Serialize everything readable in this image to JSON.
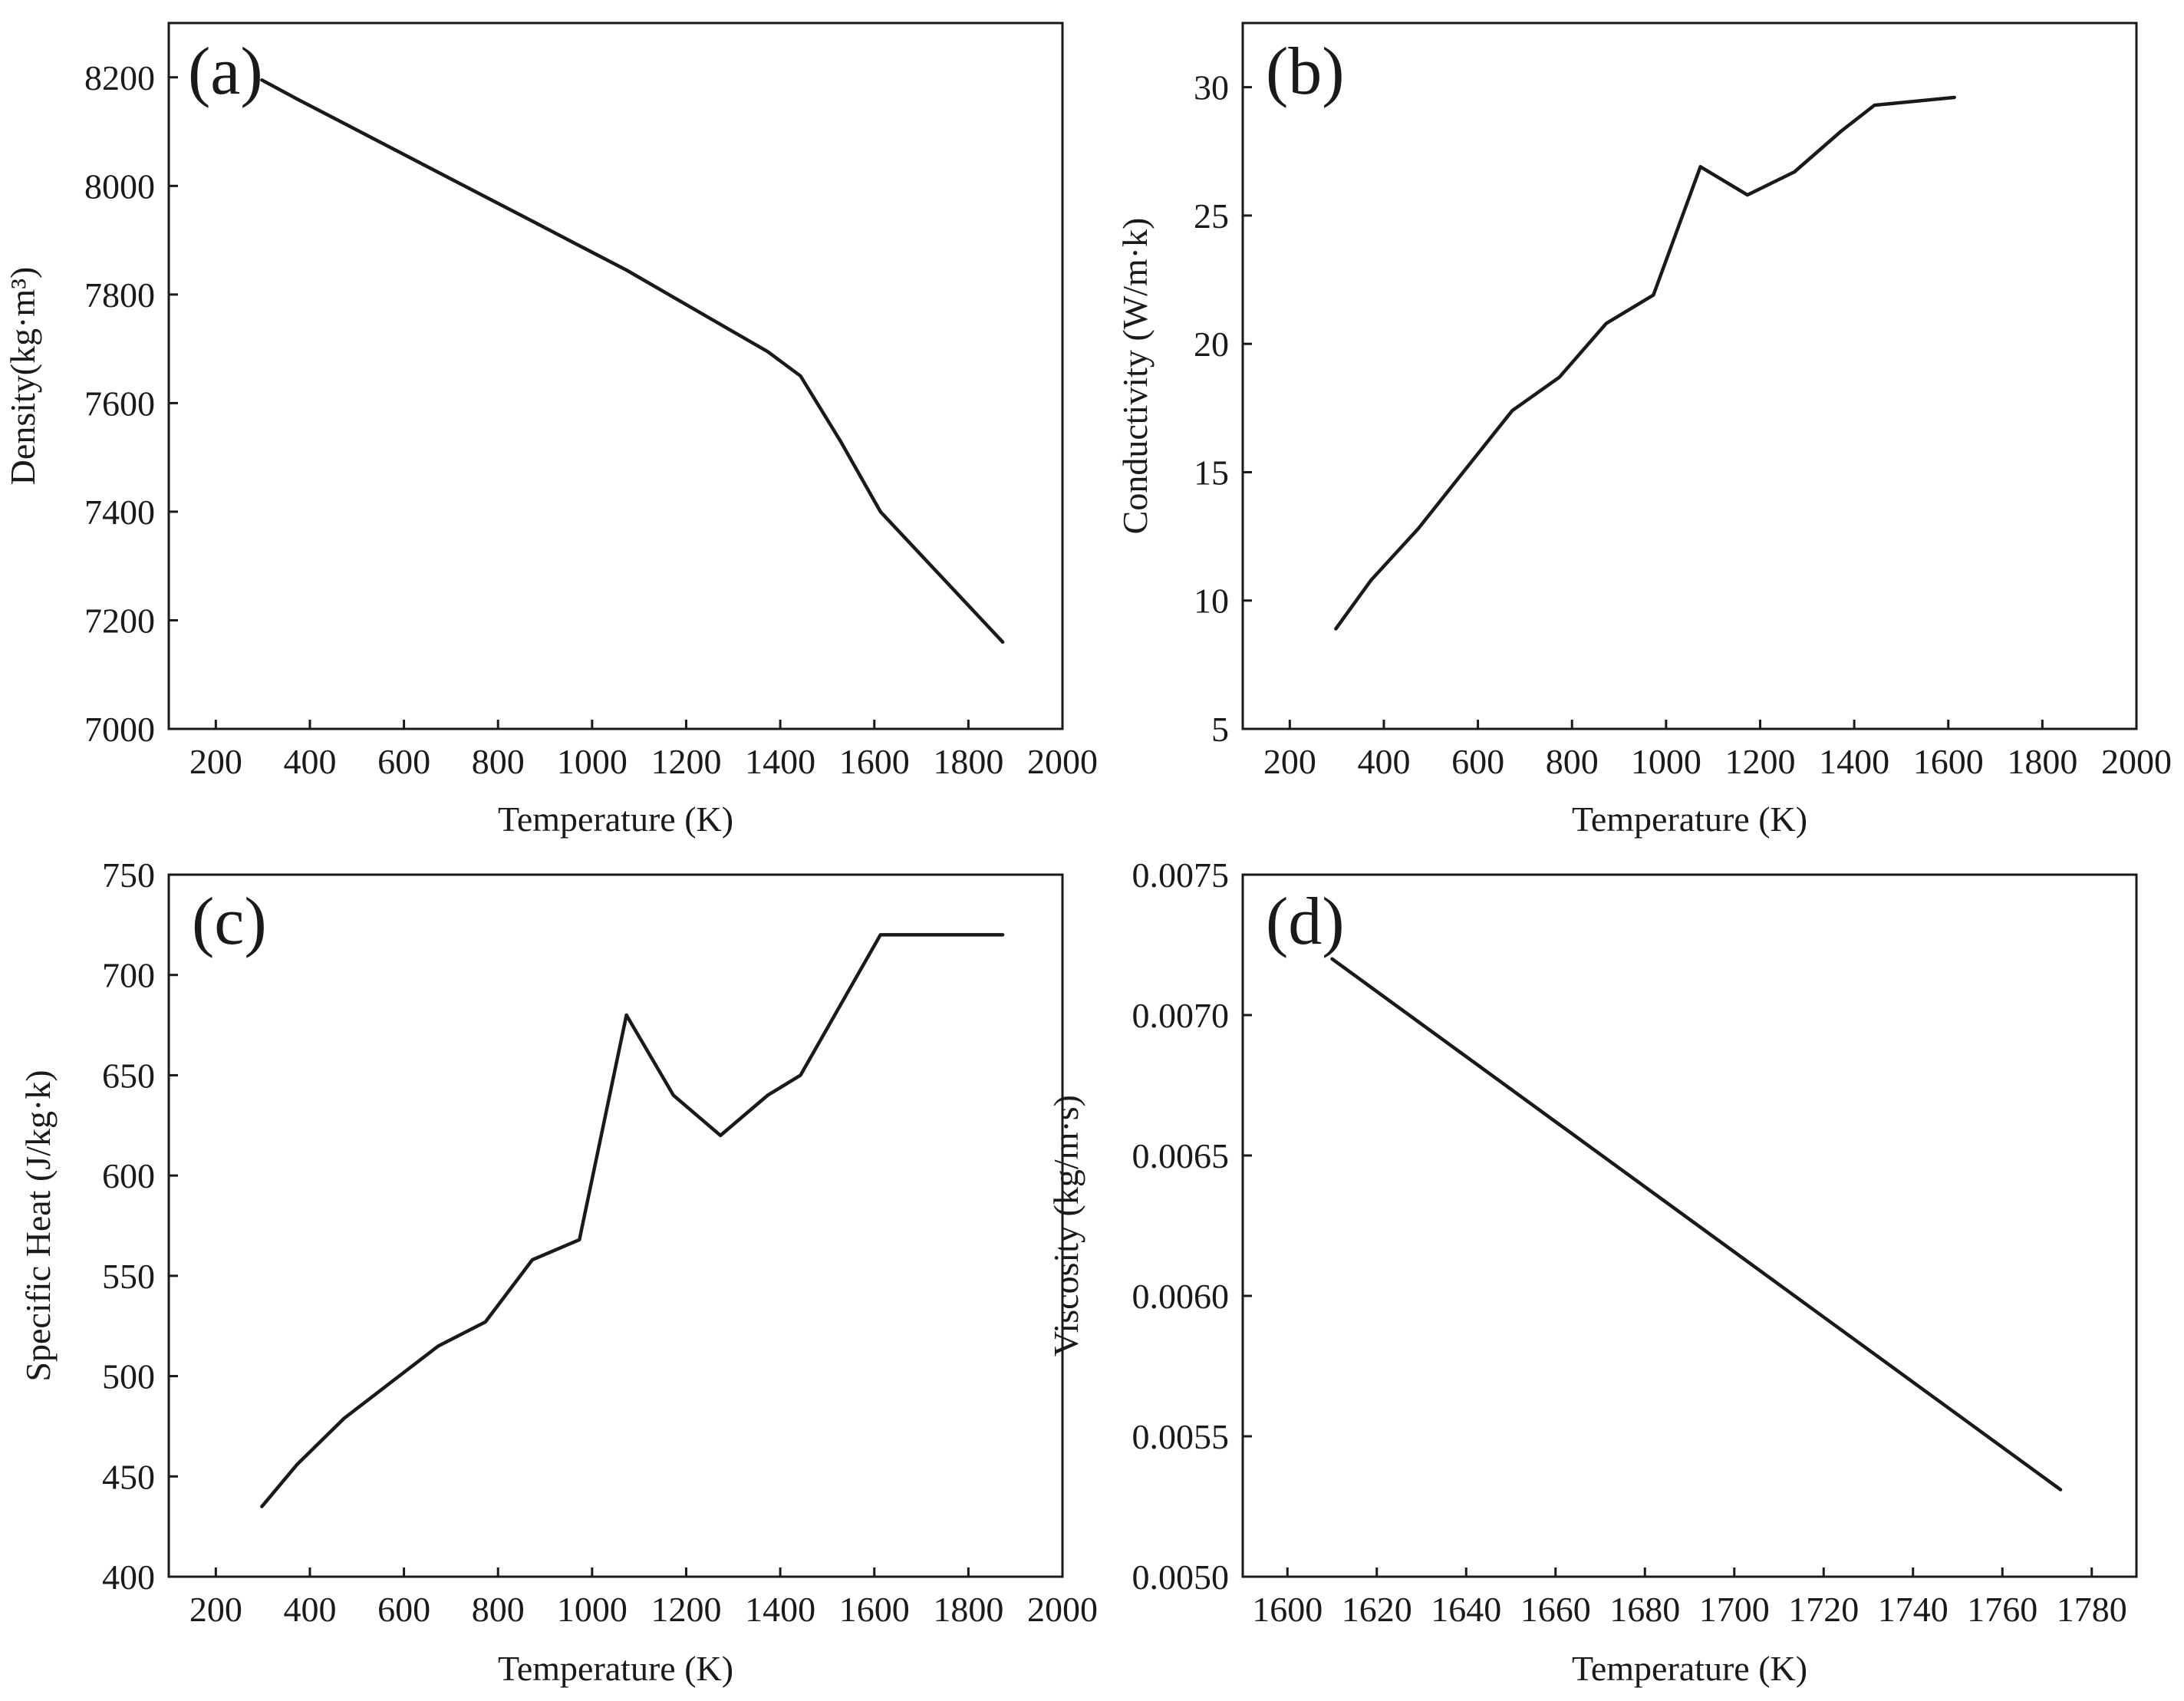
{
  "chart_data": [
    {
      "type": "line",
      "panel_label": "(a)",
      "xlabel": "Temperature (K)",
      "ylabel": "Density(kg·m³)",
      "xlim": [
        100,
        2000
      ],
      "ylim": [
        7000,
        8300
      ],
      "xticks": [
        200,
        400,
        600,
        800,
        1000,
        1200,
        1400,
        1600,
        1800,
        2000
      ],
      "yticks": [
        7000,
        7200,
        7400,
        7600,
        7800,
        8000,
        8200
      ],
      "xtick_labels": [
        "200",
        "400",
        "600",
        "800",
        "1000",
        "1200",
        "1400",
        "1600",
        "1800",
        "2000"
      ],
      "ytick_labels": [
        "7000",
        "7200",
        "7400",
        "7600",
        "7800",
        "8000",
        "8200"
      ],
      "series": [
        {
          "name": "Density",
          "x": [
            298,
            373,
            473,
            573,
            673,
            773,
            873,
            973,
            1073,
            1173,
            1273,
            1373,
            1443,
            1528,
            1613,
            1873
          ],
          "y": [
            8195,
            8160,
            8115,
            8070,
            8025,
            7980,
            7935,
            7890,
            7845,
            7795,
            7745,
            7695,
            7650,
            7530,
            7400,
            7160
          ]
        }
      ]
    },
    {
      "type": "line",
      "panel_label": "(b)",
      "xlabel": "Temperature (K)",
      "ylabel": "Conductivity (W/m·k)",
      "xlim": [
        100,
        2000
      ],
      "ylim": [
        5,
        32.5
      ],
      "xticks": [
        200,
        400,
        600,
        800,
        1000,
        1200,
        1400,
        1600,
        1800,
        2000
      ],
      "yticks": [
        5,
        10,
        15,
        20,
        25,
        30
      ],
      "xtick_labels": [
        "200",
        "400",
        "600",
        "800",
        "1000",
        "1200",
        "1400",
        "1600",
        "1800",
        "2000"
      ],
      "ytick_labels": [
        "5",
        "10",
        "15",
        "20",
        "25",
        "30"
      ],
      "series": [
        {
          "name": "Conductivity",
          "x": [
            298,
            373,
            473,
            573,
            673,
            773,
            873,
            973,
            1073,
            1173,
            1273,
            1373,
            1443,
            1613
          ],
          "y": [
            8.9,
            10.8,
            12.8,
            15.1,
            17.4,
            18.7,
            20.8,
            21.9,
            26.9,
            25.8,
            26.7,
            28.3,
            29.3,
            29.6
          ]
        }
      ]
    },
    {
      "type": "line",
      "panel_label": "(c)",
      "xlabel": "Temperature (K)",
      "ylabel": "Specific Heat (J/kg·k)",
      "xlim": [
        100,
        2000
      ],
      "ylim": [
        400,
        750
      ],
      "xticks": [
        200,
        400,
        600,
        800,
        1000,
        1200,
        1400,
        1600,
        1800,
        2000
      ],
      "yticks": [
        400,
        450,
        500,
        550,
        600,
        650,
        700,
        750
      ],
      "xtick_labels": [
        "200",
        "400",
        "600",
        "800",
        "1000",
        "1200",
        "1400",
        "1600",
        "1800",
        "2000"
      ],
      "ytick_labels": [
        "400",
        "450",
        "500",
        "550",
        "600",
        "650",
        "700",
        "750"
      ],
      "series": [
        {
          "name": "Specific Heat",
          "x": [
            298,
            373,
            473,
            573,
            673,
            773,
            873,
            973,
            1073,
            1173,
            1273,
            1373,
            1443,
            1613,
            1873
          ],
          "y": [
            435,
            456,
            479,
            497,
            515,
            527,
            558,
            568,
            680,
            640,
            620,
            640,
            650,
            720,
            720
          ]
        }
      ]
    },
    {
      "type": "line",
      "panel_label": "(d)",
      "xlabel": "Temperature (K)",
      "ylabel": "Viscosity (kg/m·s)",
      "xlim": [
        1590,
        1790
      ],
      "ylim": [
        0.005,
        0.0075
      ],
      "xticks": [
        1600,
        1620,
        1640,
        1660,
        1680,
        1700,
        1720,
        1740,
        1760,
        1780
      ],
      "yticks": [
        0.005,
        0.0055,
        0.006,
        0.0065,
        0.007,
        0.0075
      ],
      "xtick_labels": [
        "1600",
        "1620",
        "1640",
        "1660",
        "1680",
        "1700",
        "1720",
        "1740",
        "1760",
        "1780"
      ],
      "ytick_labels": [
        "0.0050",
        "0.0055",
        "0.0060",
        "0.0065",
        "0.0070",
        "0.0075"
      ],
      "series": [
        {
          "name": "Viscosity",
          "x": [
            1610,
            1773
          ],
          "y": [
            0.0072,
            0.00531
          ]
        }
      ]
    }
  ]
}
